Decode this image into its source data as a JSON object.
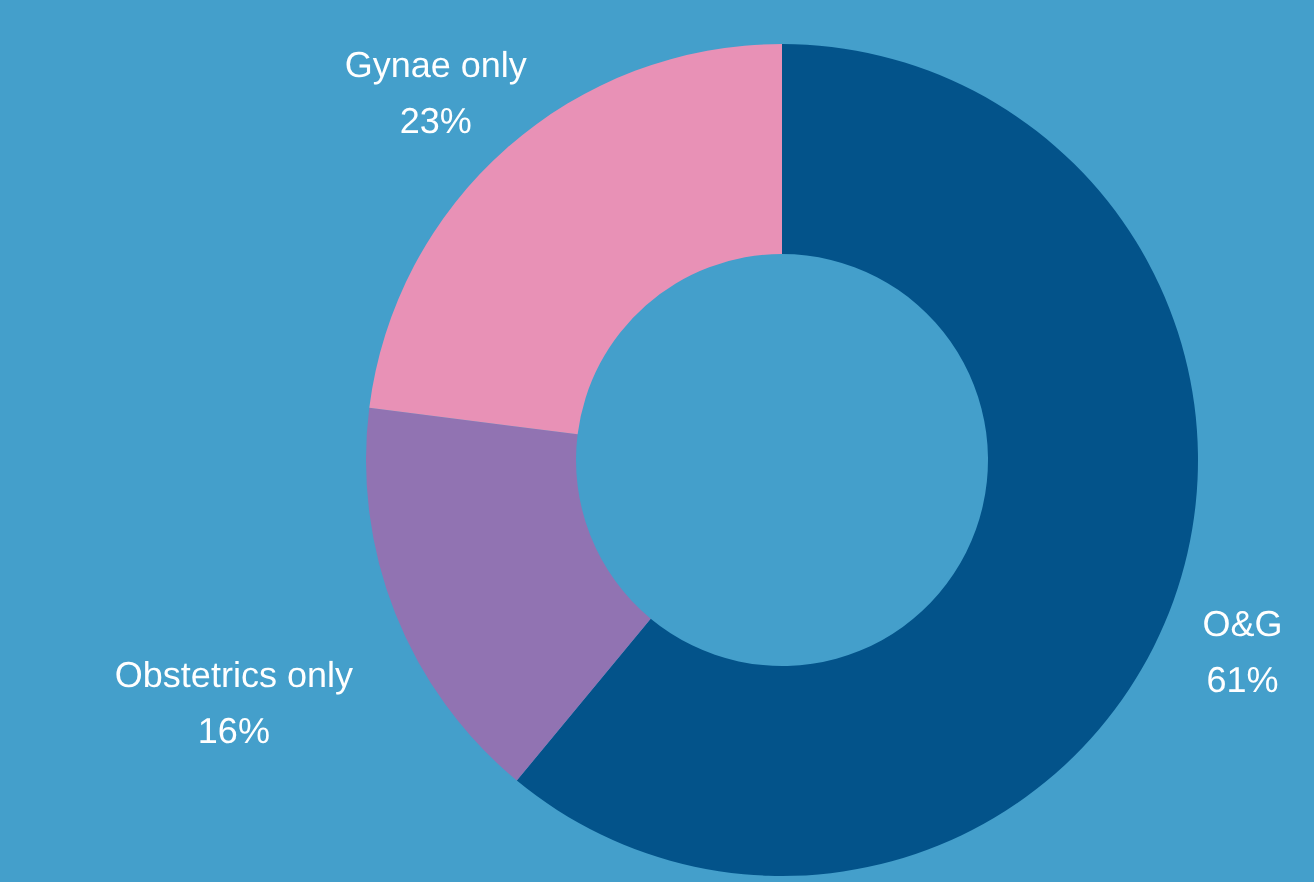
{
  "chart_data": {
    "type": "donut",
    "categories": [
      "O&G",
      "Obstetrics only",
      "Gynae only"
    ],
    "values": [
      61,
      16,
      23
    ],
    "colors": [
      "#03538a",
      "#9173b2",
      "#e891b6"
    ],
    "value_labels": [
      "61%",
      "16%",
      "23%"
    ]
  }
}
